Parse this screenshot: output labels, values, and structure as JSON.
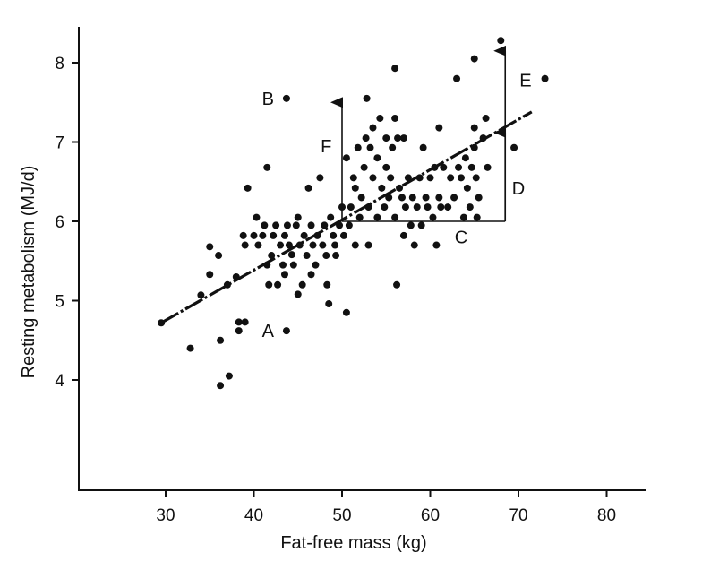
{
  "chart_data": {
    "type": "scatter",
    "title": "",
    "xlabel": "Fat-free mass (kg)",
    "ylabel": "Resting metabolism (MJ/d)",
    "xlim": [
      20,
      83
    ],
    "ylim": [
      2.8,
      8.5
    ],
    "xticks": [
      30,
      40,
      50,
      60,
      70,
      80
    ],
    "yticks": [
      4,
      5,
      6,
      7,
      8
    ],
    "xtick_labels": [
      "30",
      "40",
      "50",
      "60",
      "70",
      "80"
    ],
    "ytick_labels": [
      "4",
      "5",
      "6",
      "7",
      "8"
    ],
    "grid": false,
    "regression_line": {
      "x": [
        29.5,
        71.5
      ],
      "y": [
        4.72,
        7.38
      ],
      "style": "dash-dot"
    },
    "points": [
      [
        29.5,
        4.72
      ],
      [
        32.8,
        4.4
      ],
      [
        34,
        5.07
      ],
      [
        35,
        5.68
      ],
      [
        35,
        5.33
      ],
      [
        36,
        5.57
      ],
      [
        36.2,
        4.5
      ],
      [
        36.2,
        3.93
      ],
      [
        37,
        5.2
      ],
      [
        37.2,
        4.05
      ],
      [
        38,
        5.3
      ],
      [
        38.3,
        4.62
      ],
      [
        38.3,
        4.73
      ],
      [
        39,
        4.73
      ],
      [
        39,
        5.7
      ],
      [
        39.3,
        6.42
      ],
      [
        40,
        5.82
      ],
      [
        40.3,
        6.05
      ],
      [
        40.5,
        5.7
      ],
      [
        41,
        5.82
      ],
      [
        41.2,
        5.95
      ],
      [
        41.5,
        6.68
      ],
      [
        41.5,
        5.45
      ],
      [
        41.7,
        5.2
      ],
      [
        42,
        5.57
      ],
      [
        42.2,
        5.82
      ],
      [
        42.5,
        5.95
      ],
      [
        42.7,
        5.2
      ],
      [
        43,
        5.7
      ],
      [
        43.3,
        5.45
      ],
      [
        43.5,
        5.82
      ],
      [
        43.5,
        5.33
      ],
      [
        43.8,
        5.95
      ],
      [
        44,
        5.7
      ],
      [
        44.3,
        5.58
      ],
      [
        44.5,
        5.45
      ],
      [
        44.8,
        5.95
      ],
      [
        45,
        5.08
      ],
      [
        45,
        6.05
      ],
      [
        45.2,
        5.7
      ],
      [
        45.5,
        5.2
      ],
      [
        45.7,
        5.82
      ],
      [
        46,
        5.57
      ],
      [
        46.2,
        6.42
      ],
      [
        46.5,
        5.33
      ],
      [
        46.5,
        5.95
      ],
      [
        46.7,
        5.7
      ],
      [
        47,
        5.45
      ],
      [
        47.2,
        5.82
      ],
      [
        47.5,
        6.55
      ],
      [
        47.8,
        5.7
      ],
      [
        48,
        5.95
      ],
      [
        48.2,
        5.57
      ],
      [
        48.3,
        5.2
      ],
      [
        48.5,
        4.96
      ],
      [
        48.7,
        6.05
      ],
      [
        49,
        5.82
      ],
      [
        49.2,
        5.7
      ],
      [
        49.3,
        5.57
      ],
      [
        49.7,
        5.95
      ],
      [
        50,
        6.18
      ],
      [
        50.2,
        5.82
      ],
      [
        50.5,
        6.8
      ],
      [
        50.5,
        4.85
      ],
      [
        50.8,
        5.95
      ],
      [
        51,
        6.18
      ],
      [
        51.3,
        6.55
      ],
      [
        51.5,
        6.42
      ],
      [
        51.5,
        5.7
      ],
      [
        51.8,
        6.93
      ],
      [
        52,
        6.05
      ],
      [
        52.2,
        6.3
      ],
      [
        52.5,
        6.68
      ],
      [
        52.7,
        7.05
      ],
      [
        52.8,
        7.55
      ],
      [
        53,
        5.7
      ],
      [
        53,
        6.18
      ],
      [
        53.2,
        6.93
      ],
      [
        53.5,
        7.18
      ],
      [
        53.5,
        6.55
      ],
      [
        54,
        6.8
      ],
      [
        54,
        6.05
      ],
      [
        54.3,
        7.3
      ],
      [
        54.5,
        6.42
      ],
      [
        54.8,
        6.18
      ],
      [
        55,
        7.05
      ],
      [
        55,
        6.68
      ],
      [
        55.3,
        6.3
      ],
      [
        55.5,
        6.55
      ],
      [
        55.7,
        6.93
      ],
      [
        56,
        7.93
      ],
      [
        56,
        7.3
      ],
      [
        56,
        6.05
      ],
      [
        56.2,
        5.2
      ],
      [
        56.3,
        7.05
      ],
      [
        56.5,
        6.42
      ],
      [
        56.8,
        6.3
      ],
      [
        57,
        7.05
      ],
      [
        57,
        5.82
      ],
      [
        57.2,
        6.18
      ],
      [
        57.5,
        6.55
      ],
      [
        57.8,
        5.95
      ],
      [
        58,
        6.3
      ],
      [
        58.2,
        5.7
      ],
      [
        58.5,
        6.18
      ],
      [
        58.8,
        6.55
      ],
      [
        59,
        5.95
      ],
      [
        59.2,
        6.93
      ],
      [
        59.5,
        6.3
      ],
      [
        59.7,
        6.18
      ],
      [
        60,
        6.55
      ],
      [
        60.3,
        6.05
      ],
      [
        60.5,
        6.68
      ],
      [
        60.7,
        5.7
      ],
      [
        61,
        6.3
      ],
      [
        61,
        7.18
      ],
      [
        61.2,
        6.18
      ],
      [
        61.5,
        6.68
      ],
      [
        62,
        6.18
      ],
      [
        62.3,
        6.55
      ],
      [
        62.7,
        6.3
      ],
      [
        63,
        7.8
      ],
      [
        63.2,
        6.68
      ],
      [
        63.5,
        6.55
      ],
      [
        63.8,
        6.05
      ],
      [
        64,
        6.8
      ],
      [
        64.2,
        6.42
      ],
      [
        64.5,
        6.18
      ],
      [
        64.7,
        6.68
      ],
      [
        65,
        8.05
      ],
      [
        65,
        7.18
      ],
      [
        65,
        6.93
      ],
      [
        65.2,
        6.55
      ],
      [
        65.3,
        6.05
      ],
      [
        65.5,
        6.3
      ],
      [
        66,
        7.05
      ],
      [
        66.3,
        7.3
      ],
      [
        66.5,
        6.68
      ],
      [
        68,
        8.28
      ],
      [
        69.5,
        6.93
      ],
      [
        73,
        7.8
      ],
      [
        38.8,
        5.82
      ]
    ],
    "labeled_points": [
      {
        "label": "A",
        "x": 43.7,
        "y": 4.62
      },
      {
        "label": "B",
        "x": 43.7,
        "y": 7.55
      }
    ],
    "annotations": [
      {
        "label": "C",
        "kind": "horizontal-segment",
        "from": [
          50,
          6.0
        ],
        "to": [
          68.5,
          6.0
        ],
        "label_at": [
          63.5,
          5.8
        ]
      },
      {
        "label": "D",
        "kind": "vertical-arrow",
        "from": [
          68.5,
          6.0
        ],
        "to": [
          68.5,
          7.12
        ],
        "label_at": [
          70,
          6.42
        ]
      },
      {
        "label": "E",
        "kind": "vertical-arrow",
        "from": [
          68.5,
          6.0
        ],
        "to": [
          68.5,
          8.15
        ],
        "label_at": [
          70.8,
          7.78
        ]
      },
      {
        "label": "F",
        "kind": "vertical-arrow",
        "from": [
          50,
          6.0
        ],
        "to": [
          50,
          7.5
        ],
        "label_at": [
          48.2,
          6.95
        ]
      }
    ]
  }
}
